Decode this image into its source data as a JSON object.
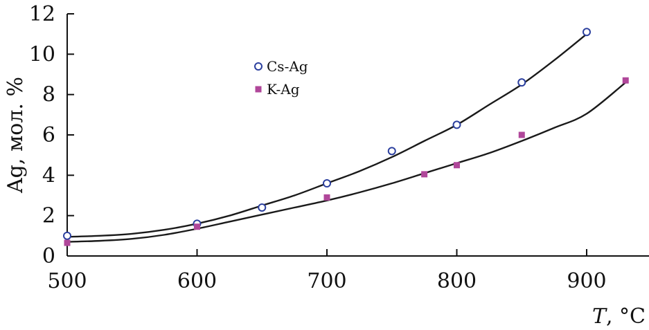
{
  "chart_data": {
    "type": "scatter",
    "xlabel": "T, °C",
    "ylabel": "Ag, мол. %",
    "xlim": [
      500,
      950
    ],
    "ylim": [
      0,
      12
    ],
    "x_ticks": [
      500,
      600,
      700,
      800,
      900
    ],
    "y_ticks": [
      0,
      2,
      4,
      6,
      8,
      10,
      12
    ],
    "grid": false,
    "legend_position": "top-center",
    "series": [
      {
        "name": "Cs-Ag",
        "marker": "open-circle",
        "color": "#2b3f9e",
        "x": [
          500,
          600,
          650,
          700,
          750,
          800,
          850,
          900
        ],
        "y": [
          1.0,
          1.6,
          2.4,
          3.6,
          5.2,
          6.5,
          8.6,
          11.1
        ],
        "fit": {
          "x": [
            500,
            525,
            550,
            575,
            600,
            625,
            650,
            675,
            700,
            725,
            750,
            775,
            800,
            825,
            850,
            875,
            900
          ],
          "y": [
            0.95,
            1.0,
            1.1,
            1.3,
            1.6,
            2.0,
            2.5,
            3.0,
            3.6,
            4.2,
            4.9,
            5.7,
            6.5,
            7.5,
            8.5,
            9.7,
            11.0
          ]
        }
      },
      {
        "name": "K-Ag",
        "marker": "filled-square",
        "color": "#b0479a",
        "x": [
          500,
          600,
          700,
          775,
          800,
          850,
          930
        ],
        "y": [
          0.65,
          1.45,
          2.9,
          4.05,
          4.5,
          6.0,
          8.7
        ],
        "fit": {
          "x": [
            500,
            525,
            550,
            575,
            600,
            625,
            650,
            675,
            700,
            725,
            750,
            775,
            800,
            825,
            850,
            875,
            900,
            930
          ],
          "y": [
            0.7,
            0.75,
            0.85,
            1.05,
            1.35,
            1.7,
            2.05,
            2.4,
            2.75,
            3.15,
            3.6,
            4.1,
            4.6,
            5.1,
            5.7,
            6.35,
            7.05,
            8.6
          ]
        }
      }
    ]
  }
}
